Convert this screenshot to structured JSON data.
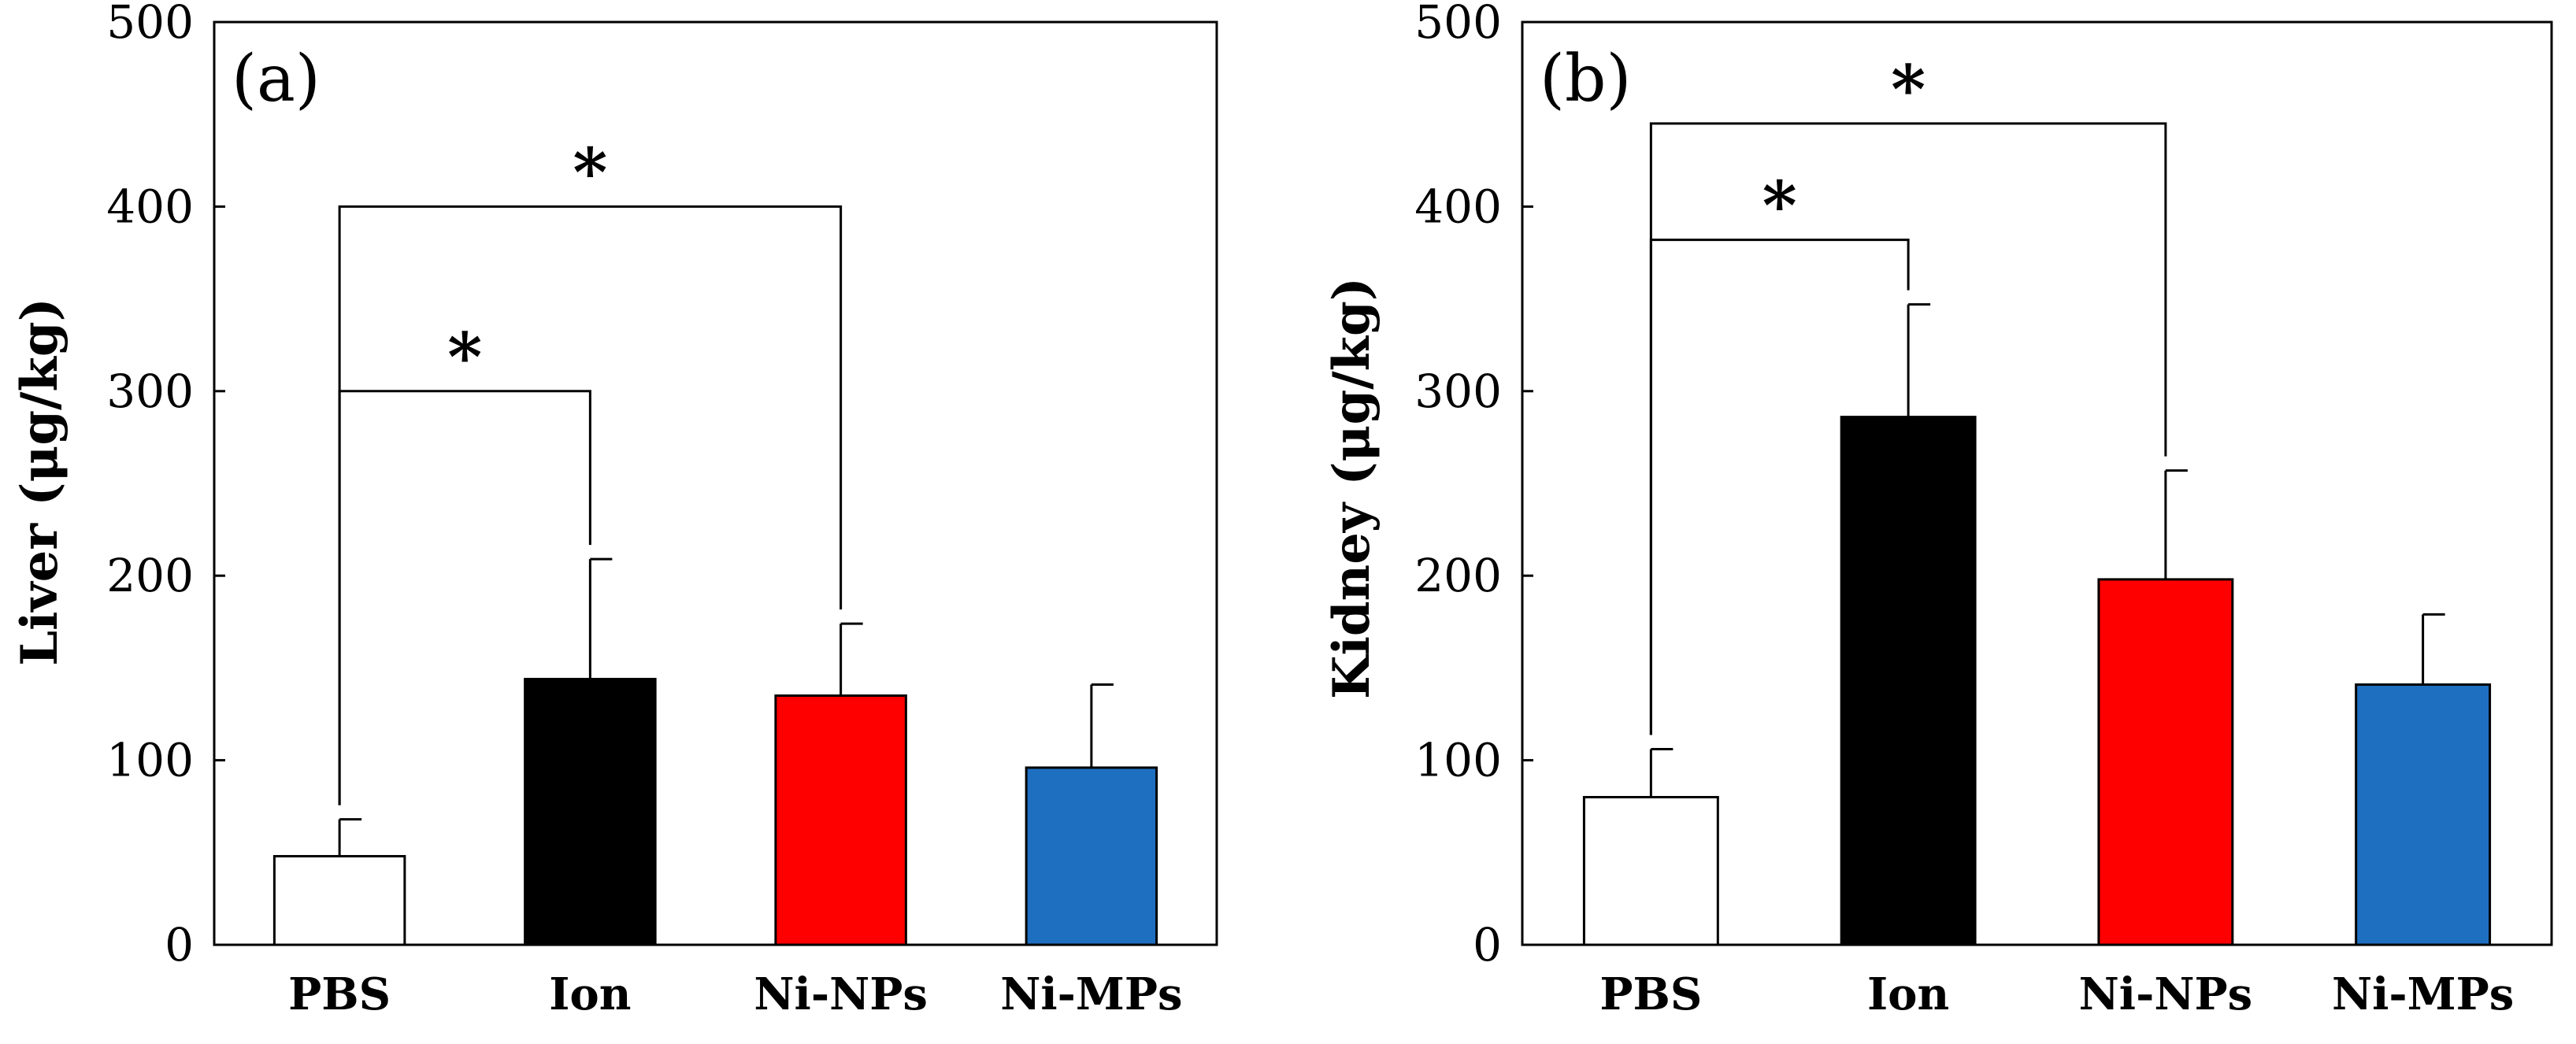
{
  "chart_data": [
    {
      "type": "bar",
      "panel_label": "(a)",
      "title": "",
      "xlabel": "",
      "ylabel": "Liver (μg/kg)",
      "ylim": [
        0,
        500
      ],
      "yticks": [
        0,
        100,
        200,
        300,
        400,
        500
      ],
      "yticks_labels": [
        "0",
        "100",
        "200",
        "300",
        "400",
        "500"
      ],
      "categories": [
        "PBS",
        "Ion",
        "Ni-NPs",
        "Ni-MPs"
      ],
      "values": [
        48,
        144,
        135,
        96
      ],
      "errors": [
        20,
        65,
        39,
        45
      ],
      "colors": [
        "#ffffff",
        "#000000",
        "#ff0000",
        "#1f6fc0"
      ],
      "significance": [
        {
          "from": 0,
          "to": 1,
          "level": 300,
          "label": "*"
        },
        {
          "from": 0,
          "to": 2,
          "level": 400,
          "label": "*"
        }
      ]
    },
    {
      "type": "bar",
      "panel_label": "(b)",
      "title": "",
      "xlabel": "",
      "ylabel": "Kidney (μg/kg)",
      "ylim": [
        0,
        500
      ],
      "yticks": [
        0,
        100,
        200,
        300,
        400,
        500
      ],
      "yticks_labels": [
        "0",
        "100",
        "200",
        "300",
        "400",
        "500"
      ],
      "categories": [
        "PBS",
        "Ion",
        "Ni-NPs",
        "Ni-MPs"
      ],
      "values": [
        80,
        286,
        198,
        141
      ],
      "errors": [
        26,
        61,
        59,
        38
      ],
      "colors": [
        "#ffffff",
        "#000000",
        "#ff0000",
        "#1f6fc0"
      ],
      "significance": [
        {
          "from": 0,
          "to": 1,
          "level": 382,
          "label": "*"
        },
        {
          "from": 0,
          "to": 2,
          "level": 445,
          "label": "*"
        }
      ]
    }
  ]
}
